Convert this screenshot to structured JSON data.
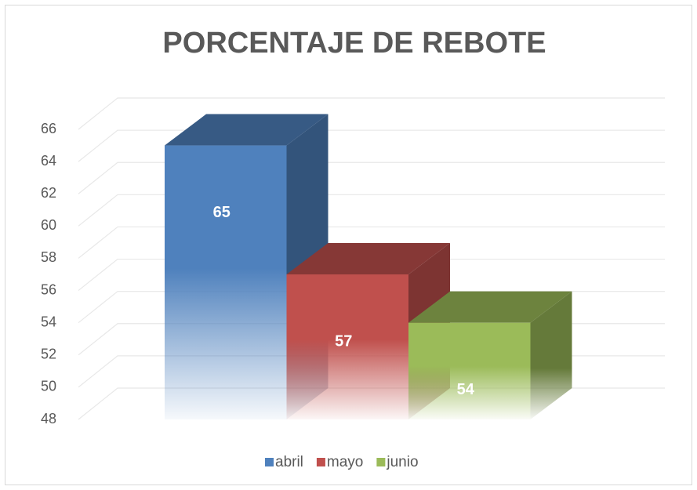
{
  "chart_data": {
    "type": "bar3d",
    "title": "PORCENTAJE DE REBOTE",
    "categories": [
      null
    ],
    "series": [
      {
        "name": "abril",
        "color": "#4f81bd",
        "values": [
          65
        ]
      },
      {
        "name": "mayo",
        "color": "#c0504d",
        "values": [
          57
        ]
      },
      {
        "name": "junio",
        "color": "#9bbb59",
        "values": [
          54
        ]
      }
    ],
    "ylim": [
      48,
      66
    ],
    "yticks": [
      48,
      50,
      52,
      54,
      56,
      58,
      60,
      62,
      64,
      66
    ],
    "grid": true,
    "legend": "bottom"
  }
}
